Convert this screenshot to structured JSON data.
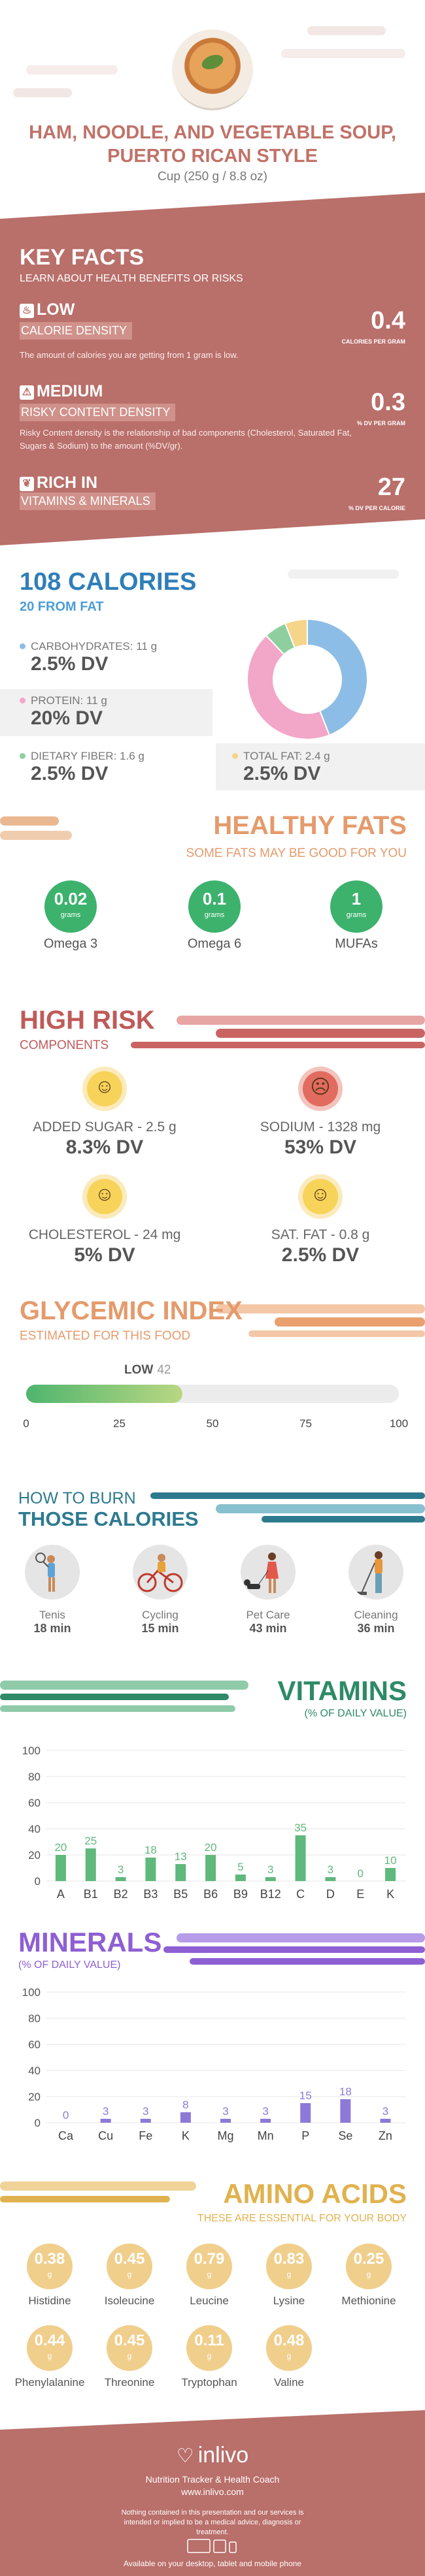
{
  "header": {
    "title": "HAM, NOODLE, AND VEGETABLE SOUP, PUERTO RICAN STYLE",
    "serving": "Cup (250 g / 8.8 oz)"
  },
  "key_facts": {
    "title": "KEY FACTS",
    "subtitle": "LEARN ABOUT HEALTH BENEFITS OR RISKS",
    "items": [
      {
        "level": "LOW",
        "label": "CALORIE DENSITY",
        "desc": "The amount of calories you are getting from 1 gram is low.",
        "value": "0.4",
        "unit": "CALORIES PER GRAM",
        "icon": "flame-icon"
      },
      {
        "level": "MEDIUM",
        "label": "RISKY CONTENT DENSITY",
        "desc": "Risky Content density is the relationship of bad components (Cholesterol, Saturated Fat, Sugars & Sodium) to the amount (%DV/gr).",
        "value": "0.3",
        "unit": "% DV PER GRAM",
        "icon": "warning-icon"
      },
      {
        "level": "RICH IN",
        "label": "VITAMINS & MINERALS",
        "desc": "",
        "value": "27",
        "unit": "% DV PER CALORIE",
        "icon": "leaf-icon"
      }
    ]
  },
  "calories": {
    "title": "108 CALORIES",
    "from_fat": "20 FROM FAT",
    "macros": [
      {
        "label": "CARBOHYDRATES: 11 g",
        "dv": "2.5% DV",
        "color": "#8cbde6"
      },
      {
        "label": "PROTEIN: 11 g",
        "dv": "20% DV",
        "color": "#f2a7c8"
      },
      {
        "label": "DIETARY FIBER: 1.6 g",
        "dv": "2.5% DV",
        "color": "#8fcf9f"
      },
      {
        "label": "TOTAL FAT: 2.4 g",
        "dv": "2.5% DV",
        "color": "#f5d58a"
      }
    ],
    "chart_data": {
      "type": "pie",
      "categories": [
        "Carbohydrates",
        "Protein",
        "Dietary Fiber",
        "Total Fat"
      ],
      "values": [
        44,
        44,
        6,
        6
      ],
      "colors": [
        "#8cbde6",
        "#f2a7c8",
        "#8fcf9f",
        "#f5d58a"
      ]
    }
  },
  "healthy_fats": {
    "title": "HEALTHY FATS",
    "subtitle": "SOME FATS MAY BE GOOD FOR YOU",
    "items": [
      {
        "value": "0.02",
        "unit": "grams",
        "name": "Omega 3"
      },
      {
        "value": "0.1",
        "unit": "grams",
        "name": "Omega 6"
      },
      {
        "value": "1",
        "unit": "grams",
        "name": "MUFAs"
      }
    ]
  },
  "high_risk": {
    "title": "HIGH RISK",
    "subtitle": "COMPONENTS",
    "items": [
      {
        "label": "ADDED SUGAR - 2.5 g",
        "dv": "8.3% DV",
        "face": "smile",
        "icon": "smiley-icon"
      },
      {
        "label": "SODIUM - 1328 mg",
        "dv": "53% DV",
        "face": "frown",
        "icon": "frowny-icon"
      },
      {
        "label": "CHOLESTEROL - 24 mg",
        "dv": "5% DV",
        "face": "smile",
        "icon": "smiley-icon"
      },
      {
        "label": "SAT. FAT - 0.8 g",
        "dv": "2.5% DV",
        "face": "smile",
        "icon": "smiley-icon"
      }
    ]
  },
  "glycemic": {
    "title": "GLYCEMIC INDEX",
    "subtitle": "ESTIMATED FOR THIS FOOD",
    "level": "LOW",
    "value": 42,
    "ticks": [
      "0",
      "25",
      "50",
      "75",
      "100"
    ]
  },
  "burn": {
    "title_line1": "HOW TO BURN",
    "title_line2": "THOSE CALORIES",
    "activities": [
      {
        "name": "Tenis",
        "time": "18 min",
        "icon": "tennis-icon"
      },
      {
        "name": "Cycling",
        "time": "15 min",
        "icon": "cycling-icon"
      },
      {
        "name": "Pet Care",
        "time": "43 min",
        "icon": "dog-walking-icon"
      },
      {
        "name": "Cleaning",
        "time": "36 min",
        "icon": "cleaning-icon"
      }
    ]
  },
  "vitamins": {
    "title": "VITAMINS",
    "subtitle": "(% OF DAILY VALUE)",
    "chart_data": {
      "type": "bar",
      "categories": [
        "A",
        "B1",
        "B2",
        "B3",
        "B5",
        "B6",
        "B9",
        "B12",
        "C",
        "D",
        "E",
        "K"
      ],
      "values": [
        20,
        25,
        3,
        18,
        13,
        20,
        5,
        3,
        35,
        3,
        0,
        10
      ],
      "ylim": [
        0,
        100
      ],
      "yticks": [
        0,
        20,
        40,
        60,
        80,
        100
      ],
      "color": "#5fb87c"
    }
  },
  "minerals": {
    "title": "MINERALS",
    "subtitle": "(% OF DAILY VALUE)",
    "chart_data": {
      "type": "bar",
      "categories": [
        "Ca",
        "Cu",
        "Fe",
        "K",
        "Mg",
        "Mn",
        "P",
        "Se",
        "Zn"
      ],
      "values": [
        0,
        3,
        3,
        8,
        3,
        3,
        15,
        18,
        3
      ],
      "ylim": [
        0,
        100
      ],
      "yticks": [
        0,
        20,
        40,
        60,
        80,
        100
      ],
      "color": "#8d79d8"
    }
  },
  "amino": {
    "title": "AMINO ACIDS",
    "subtitle": "THESE ARE ESSENTIAL FOR YOUR BODY",
    "items": [
      {
        "value": "0.38",
        "unit": "g",
        "name": "Histidine"
      },
      {
        "value": "0.45",
        "unit": "g",
        "name": "Isoleucine"
      },
      {
        "value": "0.79",
        "unit": "g",
        "name": "Leucine"
      },
      {
        "value": "0.83",
        "unit": "g",
        "name": "Lysine"
      },
      {
        "value": "0.25",
        "unit": "g",
        "name": "Methionine"
      },
      {
        "value": "0.44",
        "unit": "g",
        "name": "Phenylalanine"
      },
      {
        "value": "0.45",
        "unit": "g",
        "name": "Threonine"
      },
      {
        "value": "0.11",
        "unit": "g",
        "name": "Tryptophan"
      },
      {
        "value": "0.48",
        "unit": "g",
        "name": "Valine"
      }
    ]
  },
  "footer": {
    "logo": "inlivo",
    "tagline": "Nutrition Tracker & Health Coach",
    "url": "www.inlivo.com",
    "disclaimer": "Nothing contained in this presentation and our services is intended or implied to be a medical advice, diagnosis or treatment.",
    "available": "Available on your desktop, tablet and mobile phone"
  }
}
